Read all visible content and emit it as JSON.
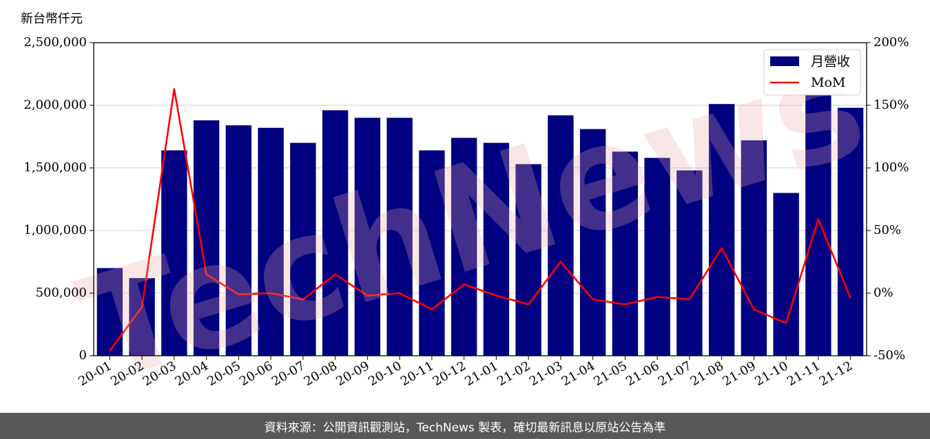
{
  "chart_data": {
    "type": "bar",
    "y_unit_label": "新台幣仟元",
    "categories": [
      "20-01",
      "20-02",
      "20-03",
      "20-04",
      "20-05",
      "20-06",
      "20-07",
      "20-08",
      "20-09",
      "20-10",
      "20-11",
      "20-12",
      "21-01",
      "21-02",
      "21-03",
      "21-04",
      "21-05",
      "21-06",
      "21-07",
      "21-08",
      "21-09",
      "21-10",
      "21-11",
      "21-12"
    ],
    "series": [
      {
        "name": "月營收",
        "type": "bar",
        "axis": "left",
        "color": "#000080",
        "values": [
          700000,
          620000,
          1640000,
          1880000,
          1840000,
          1820000,
          1700000,
          1960000,
          1900000,
          1900000,
          1640000,
          1740000,
          1700000,
          1530000,
          1920000,
          1810000,
          1630000,
          1580000,
          1480000,
          2010000,
          1720000,
          1300000,
          2080000,
          1980000
        ]
      },
      {
        "name": "MoM",
        "type": "line",
        "axis": "right",
        "color": "#ff0000",
        "values": [
          -46,
          -11,
          163,
          15,
          -1,
          0,
          -5,
          15,
          -2,
          0,
          -13,
          7,
          -2,
          -9,
          25,
          -5,
          -9,
          -3,
          -5,
          36,
          -13,
          -24,
          59,
          -4
        ]
      }
    ],
    "ylim_left": [
      0,
      2500000
    ],
    "yticks_left": [
      "0",
      "500,000",
      "1,000,000",
      "1,500,000",
      "2,000,000",
      "2,500,000"
    ],
    "ylim_right": [
      -50,
      200
    ],
    "yticks_right": [
      "-50%",
      "0%",
      "50%",
      "100%",
      "150%",
      "200%"
    ],
    "grid": "horizontal",
    "legend_position": "top-right",
    "watermark": "TechNews"
  },
  "footer": {
    "source_text": "資料來源：公開資訊觀測站，TechNews 製表，確切最新訊息以原站公告為準"
  }
}
